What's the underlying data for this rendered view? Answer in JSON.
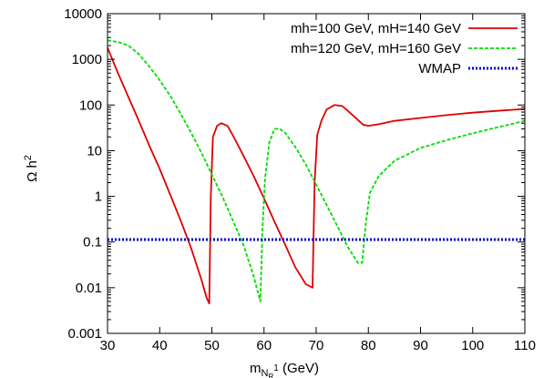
{
  "chart_data": {
    "type": "line",
    "xlabel_main": "m",
    "xlabel_sub": "N",
    "xlabel_subsub": "R",
    "xlabel_sup": "1",
    "xlabel_units": " (GeV)",
    "ylabel_main": "Ω h",
    "ylabel_sup": "2",
    "xlim": [
      30,
      110
    ],
    "ylim": [
      0.001,
      10000
    ],
    "y_scale": "log",
    "grid": false,
    "legend_position": "top-right",
    "x_ticks": [
      30,
      40,
      50,
      60,
      70,
      80,
      90,
      100,
      110
    ],
    "x_tick_labels": [
      "30",
      "40",
      "50",
      "60",
      "70",
      "80",
      "90",
      "100",
      "110"
    ],
    "y_ticks": [
      0.001,
      0.01,
      0.1,
      1,
      10,
      100,
      1000,
      10000
    ],
    "y_tick_labels": [
      "0.001",
      "0.01",
      "0.1",
      "1",
      "10",
      "100",
      "1000",
      "10000"
    ],
    "series": [
      {
        "name": "mh=100 GeV, mH=140 GeV",
        "color": "#e00000",
        "dash": "solid",
        "points": [
          [
            30,
            1800
          ],
          [
            32,
            500
          ],
          [
            34,
            150
          ],
          [
            36,
            45
          ],
          [
            38,
            13
          ],
          [
            40,
            4
          ],
          [
            42,
            1.1
          ],
          [
            44,
            0.3
          ],
          [
            46,
            0.075
          ],
          [
            48,
            0.015
          ],
          [
            49,
            0.006
          ],
          [
            49.5,
            0.0045
          ],
          [
            49.8,
            1
          ],
          [
            50.2,
            20
          ],
          [
            51,
            35
          ],
          [
            51.8,
            40
          ],
          [
            53,
            35
          ],
          [
            54,
            22
          ],
          [
            56,
            8
          ],
          [
            58,
            2.8
          ],
          [
            60,
            0.9
          ],
          [
            62,
            0.28
          ],
          [
            64,
            0.09
          ],
          [
            66,
            0.028
          ],
          [
            68,
            0.012
          ],
          [
            69.3,
            0.01
          ],
          [
            69.7,
            2
          ],
          [
            70.2,
            22
          ],
          [
            71,
            45
          ],
          [
            72,
            80
          ],
          [
            73.5,
            100
          ],
          [
            75,
            95
          ],
          [
            77,
            60
          ],
          [
            79,
            37
          ],
          [
            80,
            35
          ],
          [
            82,
            38
          ],
          [
            85,
            45
          ],
          [
            90,
            52
          ],
          [
            95,
            60
          ],
          [
            100,
            68
          ],
          [
            105,
            75
          ],
          [
            110,
            82
          ]
        ]
      },
      {
        "name": "mh=120 GeV, mH=160 GeV",
        "color": "#00dd00",
        "dash": "dashed",
        "points": [
          [
            30,
            2600
          ],
          [
            32,
            2400
          ],
          [
            34,
            2000
          ],
          [
            36,
            1300
          ],
          [
            38,
            700
          ],
          [
            40,
            350
          ],
          [
            42,
            160
          ],
          [
            44,
            65
          ],
          [
            46,
            25
          ],
          [
            48,
            9
          ],
          [
            50,
            3
          ],
          [
            52,
            1
          ],
          [
            54,
            0.3
          ],
          [
            56,
            0.09
          ],
          [
            58,
            0.018
          ],
          [
            59.3,
            0.005
          ],
          [
            59.7,
            0.2
          ],
          [
            60.2,
            2.5
          ],
          [
            61,
            15
          ],
          [
            62,
            30
          ],
          [
            63,
            30
          ],
          [
            64,
            25
          ],
          [
            66,
            12
          ],
          [
            68,
            5
          ],
          [
            70,
            1.8
          ],
          [
            72,
            0.65
          ],
          [
            74,
            0.23
          ],
          [
            76,
            0.08
          ],
          [
            78,
            0.035
          ],
          [
            78.8,
            0.035
          ],
          [
            79.5,
            0.25
          ],
          [
            80.3,
            1.2
          ],
          [
            82,
            2.8
          ],
          [
            85,
            6
          ],
          [
            90,
            11.5
          ],
          [
            95,
            17
          ],
          [
            100,
            24
          ],
          [
            105,
            33
          ],
          [
            110,
            45
          ]
        ]
      },
      {
        "name": "WMAP",
        "color": "#0000cc",
        "dash": "dotted",
        "points": [
          [
            30,
            0.113
          ],
          [
            110,
            0.113
          ]
        ]
      }
    ]
  }
}
